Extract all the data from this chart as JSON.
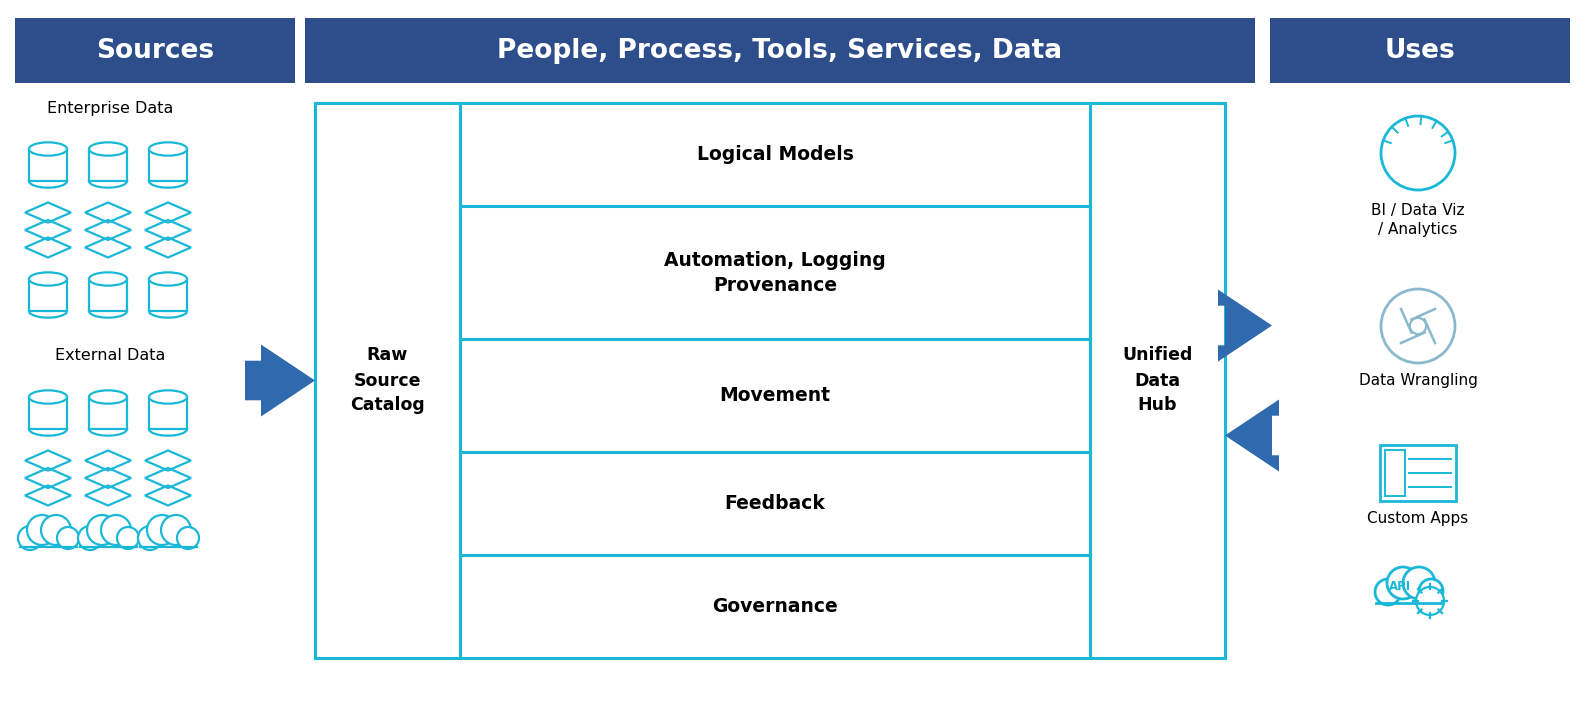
{
  "bg_color": "#ffffff",
  "header_color": "#2d4e8a",
  "header_text_color": "#ffffff",
  "box_border_color": "#1ab8d8",
  "arrow_color": "#2e6aad",
  "cyan_color": "#1ab8d8",
  "sources_header": "Sources",
  "center_header": "People, Process, Tools, Services, Data",
  "uses_header": "Uses",
  "left_label": "Raw\nSource\nCatalog",
  "right_label": "Unified\nData\nHub",
  "center_boxes": [
    "Logical Models",
    "Automation, Logging\nProvenance",
    "Movement",
    "Feedback",
    "Governance"
  ],
  "enterprise_label": "Enterprise Data",
  "external_label": "External Data",
  "uses_labels": [
    "BI / Data Viz\n/ Analytics",
    "Data Wrangling",
    "Custom Apps"
  ],
  "figw": 15.84,
  "figh": 7.08
}
